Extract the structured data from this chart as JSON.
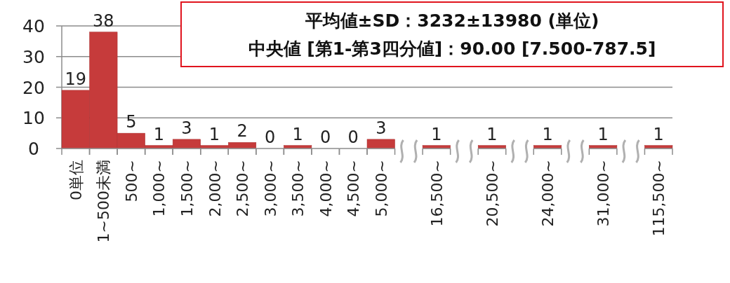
{
  "chart_data": {
    "type": "bar",
    "categories": [
      "0単位",
      "1~500未満",
      "500~",
      "1,000~",
      "1,500~",
      "2,000~",
      "2,500~",
      "3,000~",
      "3,500~",
      "4,000~",
      "4,500~",
      "5,000~",
      null,
      "16,500~",
      null,
      "20,500~",
      null,
      "24,000~",
      null,
      "31,000~",
      null,
      "115,500~"
    ],
    "values": [
      19,
      38,
      5,
      1,
      3,
      1,
      2,
      0,
      1,
      0,
      0,
      3,
      null,
      1,
      null,
      1,
      null,
      1,
      null,
      1,
      null,
      1
    ],
    "color": "#c63b3b",
    "ylim": [
      0,
      40
    ],
    "yticks": [
      0,
      10,
      20,
      30,
      40
    ],
    "grid": "y",
    "data_labels": true,
    "annotations": [
      "平均値±SD：3232±13980 (単位)",
      "中央値 [第1-第3四分値]：90.00 [7.500-787.5]"
    ]
  }
}
